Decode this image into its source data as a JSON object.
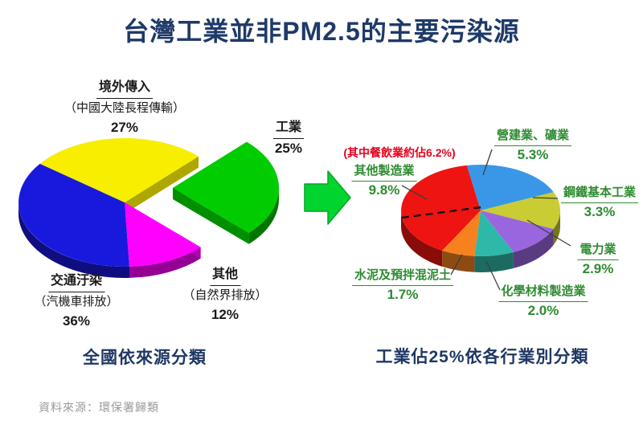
{
  "title": "台灣工業並非PM2.5的主要污染源",
  "source_note": "資料來源：環保署歸類",
  "colors": {
    "title": "#1e3a68",
    "caption": "#1f3864",
    "label": "#1a1a1a",
    "industry_label": "#2e8b31",
    "annotation": "#e8001c",
    "arrow": "#00d42f",
    "arrow_outline": "#00a526",
    "leader_line": "#3f3f3f",
    "dashed_line": "#111111",
    "source_note": "#9a9a9a"
  },
  "chart_data": [
    {
      "type": "pie",
      "style": "3d-exploded",
      "title": "全國依來源分類",
      "unit": "%",
      "total": 100,
      "start_angle_deg": 307,
      "slices": [
        {
          "label": "境外傳入",
          "sublabel": "（中國大陸長程傳輸）",
          "value": 27,
          "pct_text": "27%",
          "color": "#f7ee00"
        },
        {
          "label": "工業",
          "sublabel": "",
          "value": 25,
          "pct_text": "25%",
          "color": "#00cc00",
          "exploded": true
        },
        {
          "label": "其他",
          "sublabel": "（自然界排放）",
          "value": 12,
          "pct_text": "12%",
          "color": "#ff00ff"
        },
        {
          "label": "交通汙染",
          "sublabel": "（汽機車排放）",
          "value": 36,
          "pct_text": "36%",
          "color": "#1919dd"
        }
      ]
    },
    {
      "type": "pie",
      "style": "3d",
      "title": "工業佔25%依各行業別分類",
      "unit": "% of national PM2.5",
      "total": 25,
      "start_angle_deg": 350,
      "slices": [
        {
          "label": "營建業、礦業",
          "value": 5.3,
          "pct_text": "5.3%",
          "color": "#3a97e8"
        },
        {
          "label": "鋼鐵基本工業",
          "value": 3.3,
          "pct_text": "3.3%",
          "color": "#c9cc33"
        },
        {
          "label": "電力業",
          "value": 2.9,
          "pct_text": "2.9%",
          "color": "#9a66e0"
        },
        {
          "label": "化學材料製造業",
          "value": 2.0,
          "pct_text": "2.0%",
          "color": "#2eb8a8"
        },
        {
          "label": "水泥及預拌混泥土",
          "value": 1.7,
          "pct_text": "1.7%",
          "color": "#f5821e"
        },
        {
          "label": "其他製造業",
          "value": 9.8,
          "pct_text": "9.8%",
          "color": "#ee1411"
        }
      ],
      "annotation": {
        "text": "(其中餐飲業約佔6.2%)",
        "refers_to": "其他製造業",
        "value": 6.2
      }
    }
  ]
}
